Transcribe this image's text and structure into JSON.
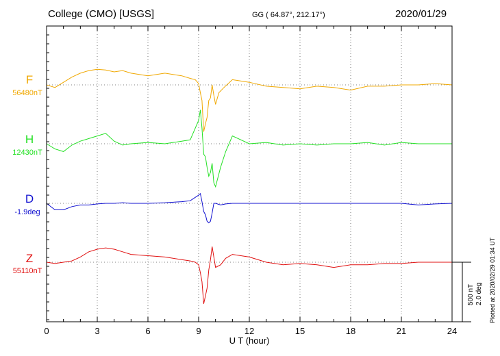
{
  "header": {
    "station": "College (CMO)  [USGS]",
    "coords": "GG ( 64.87°, 212.17°)",
    "date": "2020/01/29"
  },
  "scale_bar": {
    "line1": "500 nT",
    "line2": "2.0 deg"
  },
  "plotted_note": "Plotted at 2020/02/29 01:34 UT",
  "chart_data": {
    "type": "line",
    "title": "College (CMO)  [USGS]",
    "xlabel": "U T (hour)",
    "xlim": [
      0,
      24
    ],
    "xticks": [
      0,
      3,
      6,
      9,
      12,
      15,
      18,
      21,
      24
    ],
    "grid": true,
    "units_note": "values are deviation from channel baseline; scale bar = 500 nT / 2.0 deg",
    "series": [
      {
        "name": "F",
        "baseline": "56480nT",
        "color": "#f0a800",
        "x": [
          0,
          0.5,
          1,
          1.5,
          2,
          2.5,
          3,
          3.5,
          4,
          4.5,
          5,
          6,
          7,
          8,
          8.5,
          8.8,
          9.0,
          9.1,
          9.2,
          9.3,
          9.4,
          9.5,
          9.6,
          9.7,
          9.8,
          9.9,
          10.0,
          10.2,
          10.5,
          11,
          12,
          13,
          14,
          15,
          16,
          17,
          18,
          19,
          20,
          21,
          22,
          23,
          24
        ],
        "values": [
          0,
          -20,
          20,
          60,
          90,
          110,
          120,
          115,
          100,
          110,
          90,
          70,
          90,
          70,
          50,
          40,
          10,
          -60,
          -120,
          -360,
          -300,
          -250,
          -120,
          -100,
          0,
          -80,
          -150,
          -60,
          -20,
          40,
          20,
          -10,
          -20,
          -30,
          -10,
          -20,
          -40,
          -10,
          -10,
          0,
          0,
          10,
          0
        ]
      },
      {
        "name": "H",
        "baseline": "12430nT",
        "color": "#22e022",
        "x": [
          0,
          0.5,
          1,
          1.5,
          2,
          2.5,
          3,
          3.5,
          4,
          4.5,
          5,
          6,
          7,
          8,
          8.5,
          9.0,
          9.1,
          9.2,
          9.3,
          9.4,
          9.5,
          9.6,
          9.7,
          9.8,
          9.9,
          10.0,
          10.3,
          10.6,
          11,
          12,
          13,
          14,
          15,
          16,
          17,
          18,
          19,
          20,
          21,
          22,
          23,
          24
        ],
        "values": [
          0,
          -40,
          -60,
          -10,
          20,
          40,
          60,
          80,
          20,
          -10,
          0,
          10,
          0,
          20,
          30,
          180,
          260,
          120,
          -80,
          -100,
          -180,
          -250,
          -220,
          -150,
          -300,
          -330,
          -180,
          -60,
          60,
          0,
          10,
          -10,
          0,
          -10,
          0,
          0,
          10,
          -10,
          10,
          0,
          0,
          0
        ]
      },
      {
        "name": "D",
        "baseline": "-1.9deg",
        "color": "#1010d0",
        "x": [
          0,
          0.5,
          1,
          1.5,
          2,
          2.5,
          3,
          3.5,
          4,
          4.5,
          5,
          6,
          7,
          8,
          8.5,
          9.0,
          9.1,
          9.2,
          9.3,
          9.4,
          9.5,
          9.6,
          9.7,
          9.8,
          9.9,
          10.0,
          10.3,
          10.6,
          11,
          12,
          13,
          14,
          15,
          16,
          17,
          18,
          19,
          20,
          21,
          22,
          23,
          24
        ],
        "values": [
          0,
          -20,
          -0.2,
          -0.1,
          -0.05,
          -0.05,
          -0.02,
          0,
          0,
          0.02,
          0,
          0,
          0.02,
          0.05,
          0.08,
          0.25,
          0.3,
          0.05,
          -0.25,
          -0.35,
          -0.55,
          -0.6,
          -0.55,
          -0.3,
          0,
          0,
          -0.05,
          -0.02,
          0,
          0,
          0,
          0,
          0,
          0,
          0,
          0,
          0,
          0,
          0,
          -0.05,
          -0.02,
          0
        ]
      },
      {
        "name": "Z",
        "baseline": "55110nT",
        "color": "#e01010",
        "x": [
          0,
          0.5,
          1,
          1.5,
          2,
          2.5,
          3,
          3.5,
          4,
          4.5,
          5,
          6,
          7,
          8,
          8.5,
          8.8,
          9.0,
          9.1,
          9.2,
          9.3,
          9.4,
          9.5,
          9.6,
          9.7,
          9.8,
          9.9,
          10.0,
          10.3,
          10.6,
          11,
          12,
          13,
          14,
          15,
          16,
          17,
          18,
          19,
          20,
          21,
          22,
          23,
          24
        ],
        "values": [
          0,
          -10,
          0,
          10,
          40,
          80,
          100,
          110,
          100,
          80,
          60,
          50,
          40,
          20,
          10,
          0,
          -20,
          -80,
          -150,
          -320,
          -260,
          -200,
          -60,
          20,
          120,
          40,
          -40,
          -20,
          30,
          60,
          40,
          0,
          -20,
          -10,
          -20,
          -40,
          -20,
          -20,
          -10,
          -10,
          0,
          0,
          0
        ]
      }
    ]
  }
}
